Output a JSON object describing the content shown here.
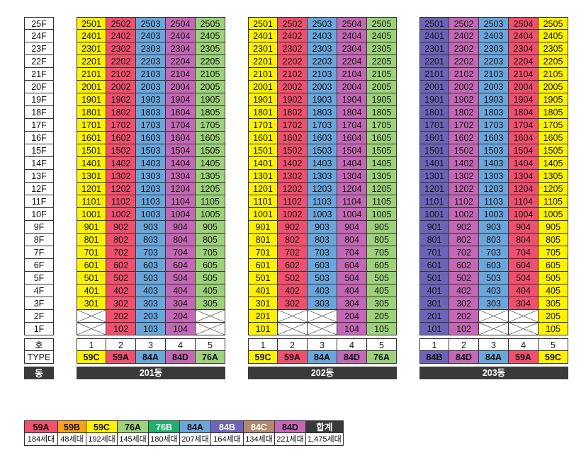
{
  "colors": {
    "59A": "#f0506e",
    "59B": "#f7a21b",
    "59C": "#fff200",
    "76A": "#9dd27a",
    "76B": "#21b06b",
    "84A": "#6aa6dc",
    "84B": "#6d64b8",
    "84C": "#b08a6e",
    "84D": "#c468b5",
    "total": "#3a3a3a"
  },
  "floors": [
    "25F",
    "24F",
    "23F",
    "22F",
    "21F",
    "20F",
    "19F",
    "18F",
    "17F",
    "16F",
    "15F",
    "14F",
    "13F",
    "12F",
    "11F",
    "10F",
    "9F",
    "8F",
    "7F",
    "6F",
    "5F",
    "4F",
    "3F",
    "2F",
    "1F"
  ],
  "row_labels": {
    "ho": "호",
    "type": "TYPE",
    "dong": "동"
  },
  "buildings": [
    {
      "name": "201동",
      "ho": [
        "1",
        "2",
        "3",
        "4",
        "5"
      ],
      "types": [
        "59C",
        "59A",
        "84A",
        "84D",
        "76A"
      ],
      "empty_units": [
        "201",
        "205",
        "101",
        "105"
      ]
    },
    {
      "name": "202동",
      "ho": [
        "1",
        "2",
        "3",
        "4",
        "5"
      ],
      "types": [
        "59C",
        "59A",
        "84A",
        "84D",
        "76A"
      ],
      "empty_units": [
        "202",
        "203",
        "102",
        "103"
      ]
    },
    {
      "name": "203동",
      "ho": [
        "1",
        "2",
        "3",
        "4",
        "5"
      ],
      "types": [
        "84B",
        "84D",
        "84A",
        "59A",
        "59C"
      ],
      "empty_units": [
        "203",
        "204",
        "103",
        "104"
      ]
    }
  ],
  "legend": {
    "items": [
      {
        "label": "59A",
        "count": "184세대"
      },
      {
        "label": "59B",
        "count": "48세대"
      },
      {
        "label": "59C",
        "count": "192세대"
      },
      {
        "label": "76A",
        "count": "145세대"
      },
      {
        "label": "76B",
        "count": "180세대"
      },
      {
        "label": "84A",
        "count": "207세대"
      },
      {
        "label": "84B",
        "count": "164세대"
      },
      {
        "label": "84C",
        "count": "134세대"
      },
      {
        "label": "84D",
        "count": "221세대"
      },
      {
        "label": "합계",
        "count": "1,475세대"
      }
    ]
  }
}
